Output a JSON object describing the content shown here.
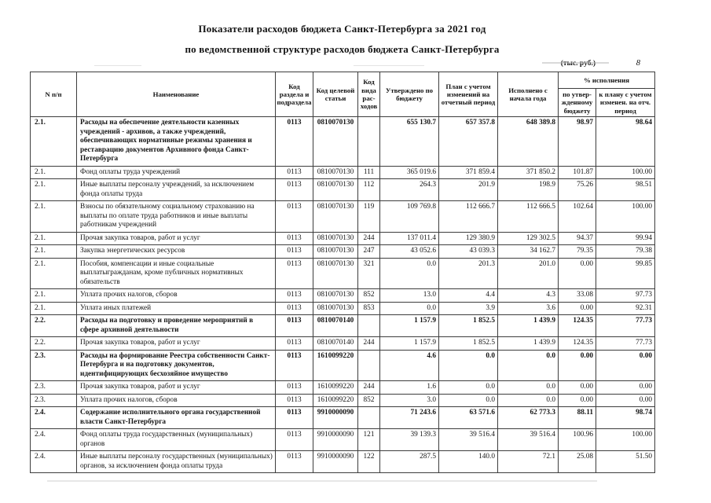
{
  "page": {
    "title_line1": "Показатели расходов бюджета Санкт-Петербурга за 2021 год",
    "title_line2": "по ведомственной структуре расходов бюджета Санкт-Петербурга",
    "units_note": "(тыс. руб.)",
    "page_number": "8"
  },
  "table": {
    "headers": {
      "num": "N п/п",
      "name": "Наименование",
      "section_code": "Код раздела и подраз­дела",
      "target_article_code": "Код целевой статьи",
      "expense_type_code": "Код вида рас­ходов",
      "approved": "Утверждено по бюджету",
      "plan": "План с учетом изменений на отчетный период",
      "executed": "Исполнено с начала года",
      "pct_group": "% исполнения",
      "pct_budget": "по утвер­жденному бюджету",
      "pct_plan": "к плану с уче­том изменен. на отч. период"
    },
    "rows": [
      {
        "num": "2.1.",
        "bold": true,
        "name": "Расходы на обеспечение деятельности казенных учреждений - архивов, а также учреждений, обеспечивающих нормативные режимы хранения и реставрацию документов Архивного фонда Санкт-Петербурга",
        "rz": "0113",
        "csr": "0810070130",
        "vr": "",
        "approved": "655 130.7",
        "plan": "657 357.8",
        "executed": "648 389.8",
        "pct_budget": "98.97",
        "pct_plan": "98.64"
      },
      {
        "num": "2.1.",
        "bold": false,
        "name": "Фонд оплаты труда учреждений",
        "rz": "0113",
        "csr": "0810070130",
        "vr": "111",
        "approved": "365 019.6",
        "plan": "371 859.4",
        "executed": "371 850.2",
        "pct_budget": "101.87",
        "pct_plan": "100.00"
      },
      {
        "num": "2.1.",
        "bold": false,
        "name": "Иные выплаты персоналу учреждений, за исключением фонда оплаты труда",
        "rz": "0113",
        "csr": "0810070130",
        "vr": "112",
        "approved": "264.3",
        "plan": "201.9",
        "executed": "198.9",
        "pct_budget": "75.26",
        "pct_plan": "98.51"
      },
      {
        "num": "2.1.",
        "bold": false,
        "name": "Взносы по обязательному социальному страхованию на выплаты по оплате труда работников и иные выплаты работникам учреждений",
        "rz": "0113",
        "csr": "0810070130",
        "vr": "119",
        "approved": "109 769.8",
        "plan": "112 666.7",
        "executed": "112 666.5",
        "pct_budget": "102.64",
        "pct_plan": "100.00"
      },
      {
        "num": "2.1.",
        "bold": false,
        "name": "Прочая закупка товаров, работ и услуг",
        "rz": "0113",
        "csr": "0810070130",
        "vr": "244",
        "approved": "137 011.4",
        "plan": "129 380.9",
        "executed": "129 302.5",
        "pct_budget": "94.37",
        "pct_plan": "99.94"
      },
      {
        "num": "2.1.",
        "bold": false,
        "name": "Закупка энергетических ресурсов",
        "rz": "0113",
        "csr": "0810070130",
        "vr": "247",
        "approved": "43 052.6",
        "plan": "43 039.3",
        "executed": "34 162.7",
        "pct_budget": "79.35",
        "pct_plan": "79.38"
      },
      {
        "num": "2.1.",
        "bold": false,
        "name": "Пособия, компенсации и иные социальные выплатыгражданам, кроме публичных нормативных обязательств",
        "rz": "0113",
        "csr": "0810070130",
        "vr": "321",
        "approved": "0.0",
        "plan": "201.3",
        "executed": "201.0",
        "pct_budget": "0.00",
        "pct_plan": "99.85"
      },
      {
        "num": "2.1.",
        "bold": false,
        "name": "Уплата прочих налогов, сборов",
        "rz": "0113",
        "csr": "0810070130",
        "vr": "852",
        "approved": "13.0",
        "plan": "4.4",
        "executed": "4.3",
        "pct_budget": "33.08",
        "pct_plan": "97.73"
      },
      {
        "num": "2.1.",
        "bold": false,
        "name": "Уплата иных платежей",
        "rz": "0113",
        "csr": "0810070130",
        "vr": "853",
        "approved": "0.0",
        "plan": "3.9",
        "executed": "3.6",
        "pct_budget": "0.00",
        "pct_plan": "92.31"
      },
      {
        "num": "2.2.",
        "bold": true,
        "name": "Расходы на подготовку и проведение мероприятий в сфере архивной деятельности",
        "rz": "0113",
        "csr": "0810070140",
        "vr": "",
        "approved": "1 157.9",
        "plan": "1 852.5",
        "executed": "1 439.9",
        "pct_budget": "124.35",
        "pct_plan": "77.73"
      },
      {
        "num": "2.2.",
        "bold": false,
        "name": "Прочая закупка товаров, работ и услуг",
        "rz": "0113",
        "csr": "0810070140",
        "vr": "244",
        "approved": "1 157.9",
        "plan": "1 852.5",
        "executed": "1 439.9",
        "pct_budget": "124.35",
        "pct_plan": "77.73"
      },
      {
        "num": "2.3.",
        "bold": true,
        "name": "Расходы на формирование Реестра собственности Санкт-Петербурга и на подготовку документов, идентифицирующих бесхозяйное имущество",
        "rz": "0113",
        "csr": "1610099220",
        "vr": "",
        "approved": "4.6",
        "plan": "0.0",
        "executed": "0.0",
        "pct_budget": "0.00",
        "pct_plan": "0.00"
      },
      {
        "num": "2.3.",
        "bold": false,
        "name": "Прочая закупка товаров, работ и услуг",
        "rz": "0113",
        "csr": "1610099220",
        "vr": "244",
        "approved": "1.6",
        "plan": "0.0",
        "executed": "0.0",
        "pct_budget": "0.00",
        "pct_plan": "0.00"
      },
      {
        "num": "2.3.",
        "bold": false,
        "name": "Уплата прочих налогов, сборов",
        "rz": "0113",
        "csr": "1610099220",
        "vr": "852",
        "approved": "3.0",
        "plan": "0.0",
        "executed": "0.0",
        "pct_budget": "0.00",
        "pct_plan": "0.00"
      },
      {
        "num": "2.4.",
        "bold": true,
        "name": "Содержание исполнительного органа государственной  власти Санкт-Петербурга",
        "rz": "0113",
        "csr": "9910000090",
        "vr": "",
        "approved": "71 243.6",
        "plan": "63 571.6",
        "executed": "62 773.3",
        "pct_budget": "88.11",
        "pct_plan": "98.74"
      },
      {
        "num": "2.4.",
        "bold": false,
        "name": "Фонд оплаты труда государственных (муниципальных) органов",
        "rz": "0113",
        "csr": "9910000090",
        "vr": "121",
        "approved": "39 139.3",
        "plan": "39 516.4",
        "executed": "39 516.4",
        "pct_budget": "100.96",
        "pct_plan": "100.00"
      },
      {
        "num": "2.4.",
        "bold": false,
        "name": "Иные выплаты персоналу государственных (муниципальных) органов, за исключением фонда оплаты труда",
        "rz": "0113",
        "csr": "9910000090",
        "vr": "122",
        "approved": "287.5",
        "plan": "140.0",
        "executed": "72.1",
        "pct_budget": "25.08",
        "pct_plan": "51.50"
      }
    ]
  }
}
